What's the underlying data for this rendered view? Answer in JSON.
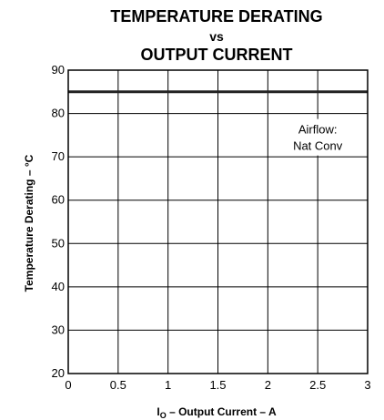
{
  "chart_data": {
    "type": "line",
    "title_line1": "TEMPERATURE DERATING",
    "title_line2": "vs",
    "title_line3": "OUTPUT CURRENT",
    "xlabel_main": "I",
    "xlabel_sub": "O",
    "xlabel_rest": " – Output Current – A",
    "ylabel": "Temperature Derating – °C",
    "xlim": [
      0,
      3
    ],
    "ylim": [
      20,
      90
    ],
    "x_ticks": [
      0,
      0.5,
      1,
      1.5,
      2,
      2.5,
      3
    ],
    "x_tick_labels": [
      "0",
      "0.5",
      "1",
      "1.5",
      "2",
      "2.5",
      "3"
    ],
    "y_ticks": [
      20,
      30,
      40,
      50,
      60,
      70,
      80,
      90
    ],
    "y_tick_labels": [
      "20",
      "30",
      "40",
      "50",
      "60",
      "70",
      "80",
      "90"
    ],
    "grid": true,
    "series": [
      {
        "x": [
          0,
          3
        ],
        "y": [
          85,
          85
        ],
        "color": "#222222"
      }
    ],
    "annotation": {
      "line1": "Airflow:",
      "line2": "Nat Conv",
      "x": 2.5,
      "y": 72
    }
  }
}
